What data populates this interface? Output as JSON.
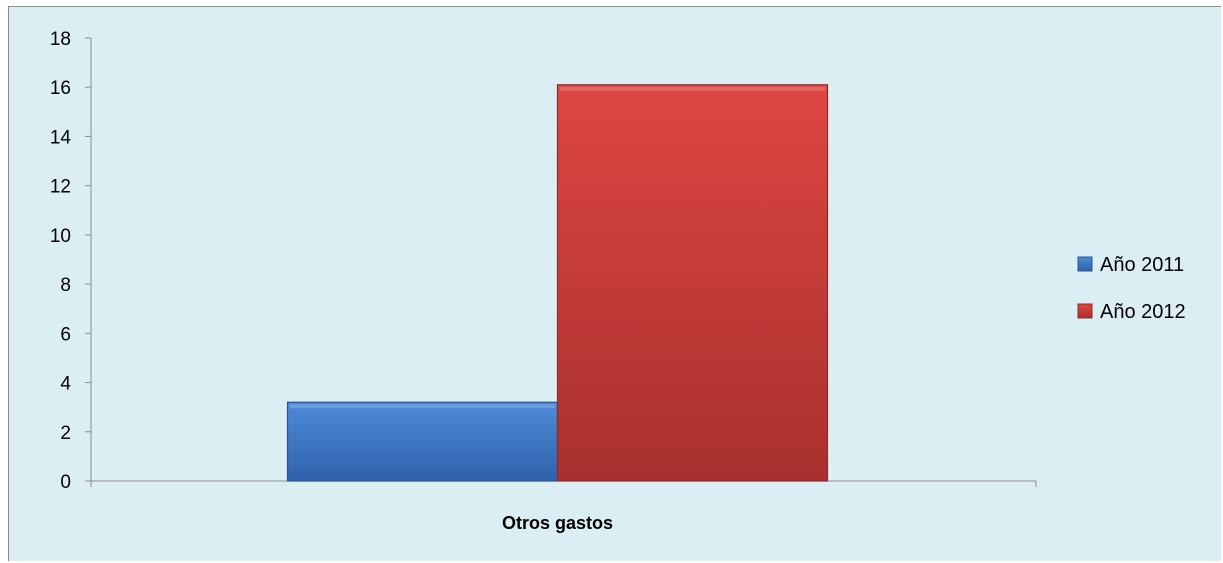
{
  "chart_data": {
    "type": "bar",
    "categories": [
      "Otros gastos"
    ],
    "series": [
      {
        "name": "Año 2011",
        "values": [
          3.2
        ],
        "color": "#3a73c4"
      },
      {
        "name": "Año 2012",
        "values": [
          16.1
        ],
        "color": "#c83a37"
      }
    ],
    "title": "",
    "xlabel": "",
    "ylabel": "",
    "ylim": [
      0,
      18
    ],
    "yticks": [
      0,
      2,
      4,
      6,
      8,
      10,
      12,
      14,
      16,
      18
    ],
    "grid": false,
    "legend_position": "right",
    "background_color": "#dbeef4"
  }
}
